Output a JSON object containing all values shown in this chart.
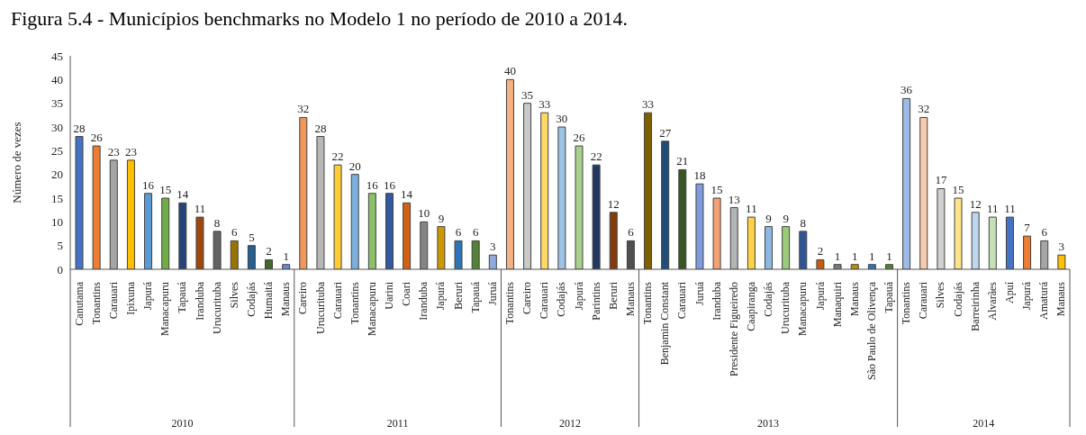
{
  "chart_data": {
    "type": "bar",
    "title": "Figura 5.4 - Municípios benchmarks no Modelo 1 no período de 2010 a 2014.",
    "ylabel": "Número de vezes",
    "ylim": [
      0,
      45
    ],
    "yticks": [
      0,
      5,
      10,
      15,
      20,
      25,
      30,
      35,
      40,
      45
    ],
    "data_labels": true,
    "annotations": [
      "2010",
      "2011",
      "2012",
      "2013",
      "2014"
    ],
    "categories": [
      "Canutama",
      "Tonantins",
      "Carauari",
      "Ipixuna",
      "Japurá",
      "Manacapuru",
      "Tapauá",
      "Iranduba",
      "Urucurituba",
      "Silves",
      "Codajás",
      "Humaitá",
      "Manaus",
      "Careiro",
      "Urucurituba",
      "Carauari",
      "Tonantins",
      "Manacapuru",
      "Uarini",
      "Coari",
      "Iranduba",
      "Japurá",
      "Beruri",
      "Tapauá",
      "Juruá",
      "Tonantins",
      "Careiro",
      "Carauari",
      "Codajás",
      "Japurá",
      "Parintins",
      "Beruri",
      "Manaus",
      "Tonantins",
      "Benjamin Constant",
      "Carauari",
      "Juruá",
      "Iranduba",
      "Presidente Figueiredo",
      "Caapiranga",
      "Codajás",
      "Urucurituba",
      "Manacapuru",
      "Japurá",
      "Manaquiri",
      "Manaus",
      "São Paulo de Olivença",
      "Tapauá",
      "Tonantins",
      "Carauari",
      "Silves",
      "Codajás",
      "Barreirinha",
      "Alvarães",
      "Apuí",
      "Japurá",
      "Amaturá",
      "Manaus"
    ],
    "series": [
      {
        "values": [
          28,
          26,
          23,
          23,
          16,
          15,
          14,
          11,
          8,
          6,
          5,
          2,
          1,
          null,
          null,
          null,
          null,
          null,
          null,
          null,
          null,
          null,
          null,
          null,
          null,
          null,
          null,
          null,
          null,
          null,
          null,
          null,
          null,
          null,
          null,
          null,
          null,
          null,
          null,
          null,
          null,
          null,
          null,
          null,
          null,
          null,
          null,
          null,
          null,
          null,
          null,
          null,
          null,
          null,
          null,
          null,
          null,
          null
        ],
        "colors": [
          "#4472c4",
          "#ed7d31",
          "#a5a5a5",
          "#ffc000",
          "#5b9bd5",
          "#70ad47",
          "#264478",
          "#9e480e",
          "#636363",
          "#997300",
          "#255e91",
          "#43682b",
          "#698ed0",
          null,
          null,
          null,
          null,
          null,
          null,
          null,
          null,
          null,
          null,
          null,
          null,
          null,
          null,
          null,
          null,
          null,
          null,
          null,
          null,
          null,
          null,
          null,
          null,
          null,
          null,
          null,
          null,
          null,
          null,
          null,
          null,
          null,
          null,
          null,
          null,
          null,
          null,
          null,
          null,
          null,
          null,
          null,
          null,
          null
        ]
      },
      {
        "values": [
          null,
          null,
          null,
          null,
          null,
          null,
          null,
          null,
          null,
          null,
          null,
          null,
          null,
          32,
          28,
          22,
          20,
          16,
          16,
          14,
          10,
          9,
          6,
          6,
          3,
          null,
          null,
          null,
          null,
          null,
          null,
          null,
          null,
          null,
          null,
          null,
          null,
          null,
          null,
          null,
          null,
          null,
          null,
          null,
          null,
          null,
          null,
          null,
          null,
          null,
          null,
          null,
          null,
          null,
          null,
          null,
          null,
          null
        ],
        "colors": [
          null,
          null,
          null,
          null,
          null,
          null,
          null,
          null,
          null,
          null,
          null,
          null,
          null,
          "#f1975a",
          "#b7b7b7",
          "#ffcd33",
          "#7cafdd",
          "#8cc168",
          "#335aa1",
          "#d26012",
          "#848484",
          "#cc9a00",
          "#2e75b6",
          "#548235",
          "#8faadc",
          null,
          null,
          null,
          null,
          null,
          null,
          null,
          null,
          null,
          null,
          null,
          null,
          null,
          null,
          null,
          null,
          null,
          null,
          null,
          null,
          null,
          null,
          null,
          null,
          null,
          null,
          null,
          null,
          null,
          null,
          null,
          null,
          null
        ]
      },
      {
        "values": [
          null,
          null,
          null,
          null,
          null,
          null,
          null,
          null,
          null,
          null,
          null,
          null,
          null,
          null,
          null,
          null,
          null,
          null,
          null,
          null,
          null,
          null,
          null,
          null,
          null,
          40,
          35,
          33,
          30,
          26,
          22,
          12,
          6,
          null,
          null,
          null,
          null,
          null,
          null,
          null,
          null,
          null,
          null,
          null,
          null,
          null,
          null,
          null,
          null,
          null,
          null,
          null,
          null,
          null,
          null,
          null,
          null,
          null
        ],
        "colors": [
          null,
          null,
          null,
          null,
          null,
          null,
          null,
          null,
          null,
          null,
          null,
          null,
          null,
          null,
          null,
          null,
          null,
          null,
          null,
          null,
          null,
          null,
          null,
          null,
          null,
          "#f4b183",
          "#c9c9c9",
          "#ffd966",
          "#9dc3e6",
          "#a9d18e",
          "#203864",
          "#843c0c",
          "#505050",
          null,
          null,
          null,
          null,
          null,
          null,
          null,
          null,
          null,
          null,
          null,
          null,
          null,
          null,
          null,
          null,
          null,
          null,
          null,
          null,
          null,
          null,
          null,
          null,
          null
        ]
      },
      {
        "values": [
          null,
          null,
          null,
          null,
          null,
          null,
          null,
          null,
          null,
          null,
          null,
          null,
          null,
          null,
          null,
          null,
          null,
          null,
          null,
          null,
          null,
          null,
          null,
          null,
          null,
          null,
          null,
          null,
          null,
          null,
          null,
          null,
          null,
          33,
          27,
          21,
          18,
          15,
          13,
          11,
          9,
          9,
          8,
          2,
          1,
          1,
          1,
          1,
          null,
          null,
          null,
          null,
          null,
          null,
          null,
          null,
          null,
          null
        ],
        "colors": [
          null,
          null,
          null,
          null,
          null,
          null,
          null,
          null,
          null,
          null,
          null,
          null,
          null,
          null,
          null,
          null,
          null,
          null,
          null,
          null,
          null,
          null,
          null,
          null,
          null,
          null,
          null,
          null,
          null,
          null,
          null,
          null,
          null,
          "#7f6000",
          "#1f4e79",
          "#375623",
          "#7e9bdc",
          "#f4a275",
          "#b4b4b4",
          "#ffd347",
          "#8db8e2",
          "#9bcb7a",
          "#2f5597",
          "#c55a11",
          "#7b7b7b",
          "#bf9000",
          "#2e75b6",
          "#548235",
          null,
          null,
          null,
          null,
          null,
          null,
          null,
          null,
          null,
          null
        ]
      },
      {
        "values": [
          null,
          null,
          null,
          null,
          null,
          null,
          null,
          null,
          null,
          null,
          null,
          null,
          null,
          null,
          null,
          null,
          null,
          null,
          null,
          null,
          null,
          null,
          null,
          null,
          null,
          null,
          null,
          null,
          null,
          null,
          null,
          null,
          null,
          null,
          null,
          null,
          null,
          null,
          null,
          null,
          null,
          null,
          null,
          null,
          null,
          null,
          null,
          null,
          36,
          32,
          17,
          15,
          12,
          11,
          11,
          7,
          6,
          3
        ],
        "colors": [
          null,
          null,
          null,
          null,
          null,
          null,
          null,
          null,
          null,
          null,
          null,
          null,
          null,
          null,
          null,
          null,
          null,
          null,
          null,
          null,
          null,
          null,
          null,
          null,
          null,
          null,
          null,
          null,
          null,
          null,
          null,
          null,
          null,
          null,
          null,
          null,
          null,
          null,
          null,
          null,
          null,
          null,
          null,
          null,
          null,
          null,
          null,
          null,
          "#9dbbe8",
          "#f8cbad",
          "#d0d0d0",
          "#ffe38a",
          "#bdd7ee",
          "#c5e0b4",
          "#4472c4",
          "#ed7d31",
          "#a5a5a5",
          "#ffc000"
        ]
      }
    ]
  }
}
